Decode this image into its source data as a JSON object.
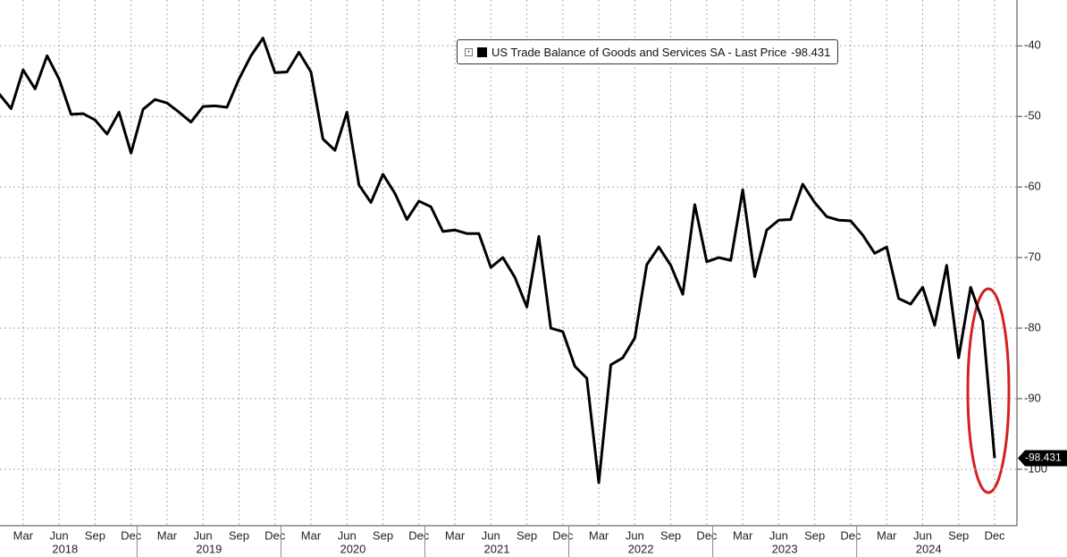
{
  "chart_data": {
    "type": "line",
    "categories": [
      null,
      null,
      "Mar",
      null,
      null,
      "Jun",
      null,
      null,
      "Sep",
      null,
      null,
      "Dec",
      null,
      null,
      "Mar",
      null,
      null,
      "Jun",
      null,
      null,
      "Sep",
      null,
      null,
      "Dec",
      null,
      null,
      "Mar",
      null,
      null,
      "Jun",
      null,
      null,
      "Sep",
      null,
      null,
      "Dec",
      null,
      null,
      "Mar",
      null,
      null,
      "Jun",
      null,
      null,
      "Sep",
      null,
      null,
      "Dec",
      null,
      null,
      "Mar",
      null,
      null,
      "Jun",
      null,
      null,
      "Sep",
      null,
      null,
      "Dec",
      null,
      null,
      "Mar",
      null,
      null,
      "Jun",
      null,
      null,
      "Sep",
      null,
      null,
      "Dec",
      null,
      null,
      "Mar",
      null,
      null,
      "Jun",
      null,
      null,
      "Sep",
      null,
      null,
      "Dec"
    ],
    "years": [
      "2018",
      "2019",
      "2020",
      "2021",
      "2022",
      "2023",
      "2024"
    ],
    "series": [
      {
        "name": "US Trade Balance of Goods and Services SA - Last Price",
        "color": "#000000",
        "values": [
          -46.8,
          -48.9,
          -43.4,
          -46.1,
          -41.4,
          -44.7,
          -49.7,
          -49.6,
          -50.5,
          -52.5,
          -49.4,
          -55.2,
          -49.0,
          -47.6,
          -48.1,
          -49.4,
          -50.8,
          -48.6,
          -48.5,
          -48.7,
          -44.7,
          -41.4,
          -38.9,
          -43.8,
          -43.7,
          -40.9,
          -43.7,
          -53.2,
          -54.8,
          -49.4,
          -59.7,
          -62.2,
          -58.2,
          -60.9,
          -64.6,
          -62.0,
          -62.8,
          -66.3,
          -66.1,
          -66.6,
          -66.6,
          -71.4,
          -70.0,
          -72.8,
          -77.0,
          -67.0,
          -80.0,
          -80.5,
          -85.4,
          -87.1,
          -101.9,
          -85.2,
          -84.2,
          -81.4,
          -71.0,
          -68.5,
          -71.1,
          -75.2,
          -62.5,
          -70.6,
          -70.0,
          -70.4,
          -60.4,
          -72.7,
          -66.1,
          -64.7,
          -64.6,
          -59.6,
          -62.2,
          -64.2,
          -64.7,
          -64.8,
          -66.8,
          -69.4,
          -68.5,
          -75.8,
          -76.6,
          -74.2,
          -79.6,
          -71.1,
          -84.2,
          -74.2,
          -79.0,
          -98.431
        ]
      }
    ],
    "ylim": [
      -108,
      -33.5
    ],
    "yticks": [
      -40,
      -50,
      -60,
      -70,
      -80,
      -90,
      -100
    ],
    "grid": true
  }
}
